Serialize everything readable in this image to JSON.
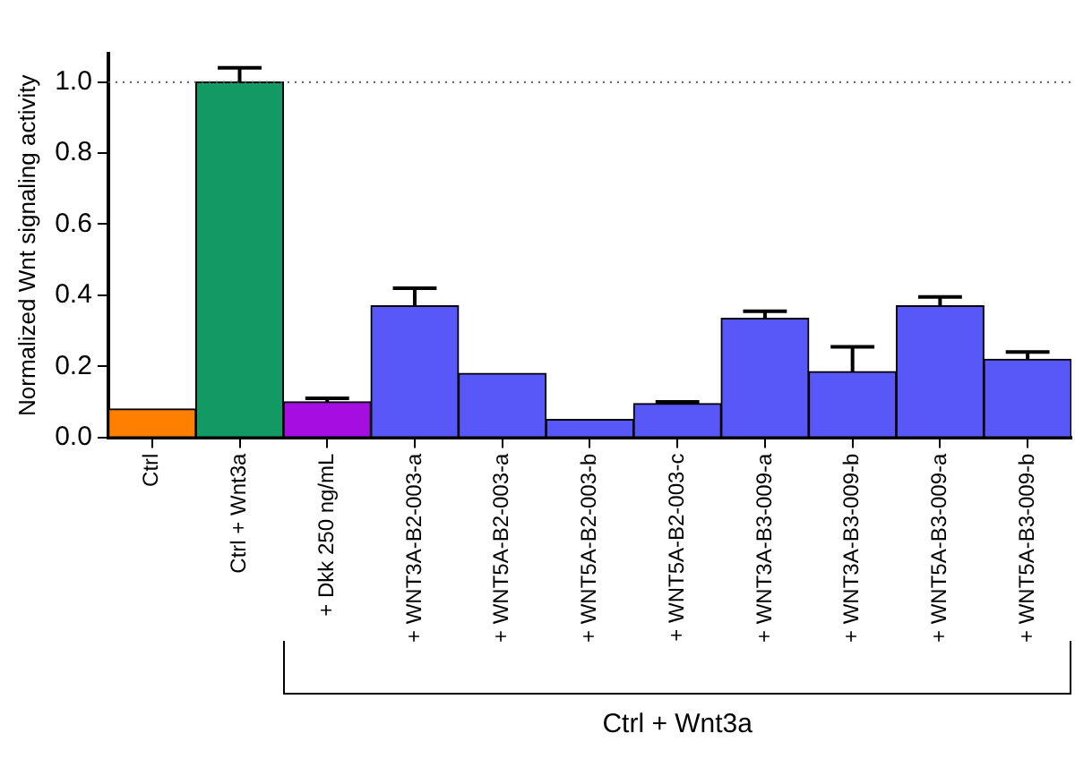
{
  "chart_data": {
    "type": "bar",
    "ylabel": "Normalized Wnt signaling activity",
    "categories": [
      "Ctrl",
      "Ctrl + Wnt3a",
      "+ Dkk 250 ng/mL",
      "+ WNT3A-B2-003-a",
      "+ WNT5A-B2-003-a",
      "+ WNT5A-B2-003-b",
      "+ WNT5A-B2-003-c",
      "+ WNT3A-B3-009-a",
      "+ WNT3A-B3-009-b",
      "+ WNT5A-B3-009-a",
      "+ WNT5A-B3-009-b"
    ],
    "values": [
      0.08,
      1.0,
      0.1,
      0.37,
      0.18,
      0.05,
      0.095,
      0.335,
      0.185,
      0.37,
      0.22
    ],
    "colors": [
      "#ff8000",
      "#139a64",
      "#a40ee0",
      "#5858f8",
      "#5858f8",
      "#5858f8",
      "#5858f8",
      "#5858f8",
      "#5858f8",
      "#5858f8",
      "#5858f8"
    ],
    "errors": [
      null,
      [
        1.0,
        1.04
      ],
      [
        0.1,
        0.11
      ],
      [
        0.37,
        0.42
      ],
      null,
      null,
      [
        0.095,
        0.1
      ],
      [
        0.335,
        0.355
      ],
      [
        0.185,
        0.255
      ],
      [
        0.37,
        0.395
      ],
      [
        0.22,
        0.24
      ]
    ],
    "ylim": [
      0,
      1.08
    ],
    "yticks": [
      {
        "value": 0,
        "label": "0.0"
      },
      {
        "value": 0.2,
        "label": "0.2"
      },
      {
        "value": 0.4,
        "label": "0.4"
      },
      {
        "value": 0.6,
        "label": "0.6"
      },
      {
        "value": 0.8,
        "label": "0.8"
      },
      {
        "value": 1,
        "label": "1.0"
      }
    ],
    "ref_lines": [
      {
        "axis": "y",
        "value": 1,
        "color": "#555555",
        "line_style": "dotted"
      }
    ],
    "grid": false,
    "legend": false,
    "annotations": [
      "Ctrl + Wnt3a"
    ]
  }
}
